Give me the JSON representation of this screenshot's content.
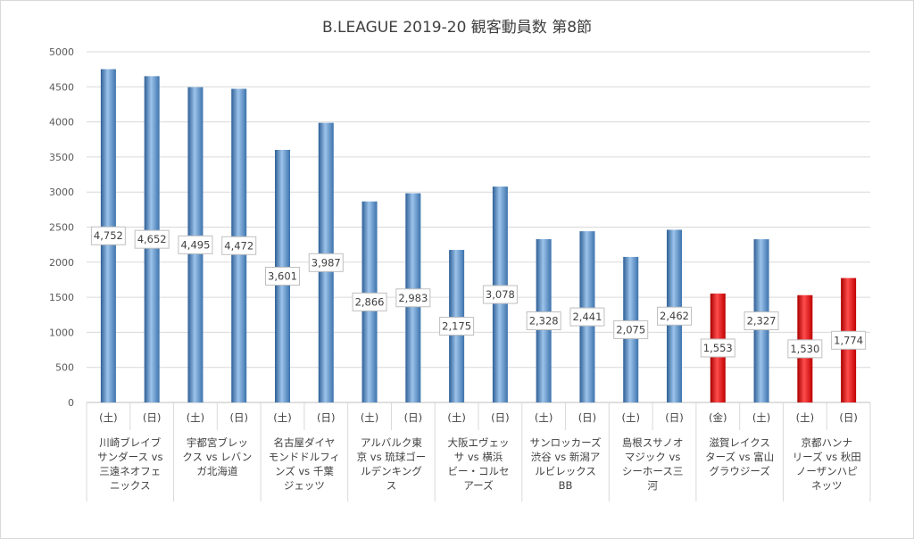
{
  "chart_data": {
    "type": "bar",
    "title": "B.LEAGUE 2019-20 観客動員数 第8節",
    "xlabel": "",
    "ylabel": "",
    "ylim": [
      0,
      5000
    ],
    "yticks": [
      0,
      500,
      1000,
      1500,
      2000,
      2500,
      3000,
      3500,
      4000,
      4500,
      5000
    ],
    "grid": true,
    "legend": "none",
    "colors": {
      "blue": "#5b9bd5",
      "red": "#ff0000"
    },
    "categories": [
      "(土)",
      "(日)",
      "(土)",
      "(日)",
      "(土)",
      "(日)",
      "(土)",
      "(日)",
      "(土)",
      "(日)",
      "(土)",
      "(日)",
      "(土)",
      "(日)",
      "(金)",
      "(土)",
      "(土)",
      "(日)"
    ],
    "values": [
      4752,
      4652,
      4495,
      4472,
      3601,
      3987,
      2866,
      2983,
      2175,
      3078,
      2328,
      2441,
      2075,
      2462,
      1553,
      2327,
      1530,
      1774
    ],
    "data_labels": [
      "4,752",
      "4,652",
      "4,495",
      "4,472",
      "3,601",
      "3,987",
      "2,866",
      "2,983",
      "2,175",
      "3,078",
      "2,328",
      "2,441",
      "2,075",
      "2,462",
      "1,553",
      "2,327",
      "1,530",
      "1,774"
    ],
    "bar_colors": [
      "blue",
      "blue",
      "blue",
      "blue",
      "blue",
      "blue",
      "blue",
      "blue",
      "blue",
      "blue",
      "blue",
      "blue",
      "blue",
      "blue",
      "red",
      "blue",
      "red",
      "red"
    ],
    "groups": [
      {
        "lines": [
          "川崎ブレイブ",
          "サンダース vs",
          "三遠ネオフェ",
          "ニックス"
        ]
      },
      {
        "lines": [
          "宇都宮ブレッ",
          "クス vs レバン",
          "ガ北海道"
        ]
      },
      {
        "lines": [
          "名古屋ダイヤ",
          "モンドドルフィ",
          "ンズ vs 千葉",
          "ジェッツ"
        ]
      },
      {
        "lines": [
          "アルバルク東",
          "京 vs 琉球ゴー",
          "ルデンキング",
          "ス"
        ]
      },
      {
        "lines": [
          "大阪エヴェッ",
          "サ vs 横浜",
          "ビー・コルセ",
          "アーズ"
        ]
      },
      {
        "lines": [
          "サンロッカーズ",
          "渋谷 vs 新潟ア",
          "ルビレックス",
          "BB"
        ]
      },
      {
        "lines": [
          "島根スサノオ",
          "マジック vs",
          "シーホース三",
          "河"
        ]
      },
      {
        "lines": [
          "滋賀レイクス",
          "ターズ vs 富山",
          "グラウジーズ"
        ]
      },
      {
        "lines": [
          "京都ハンナ",
          "リーズ vs 秋田",
          "ノーザンハピ",
          "ネッツ"
        ]
      }
    ]
  }
}
